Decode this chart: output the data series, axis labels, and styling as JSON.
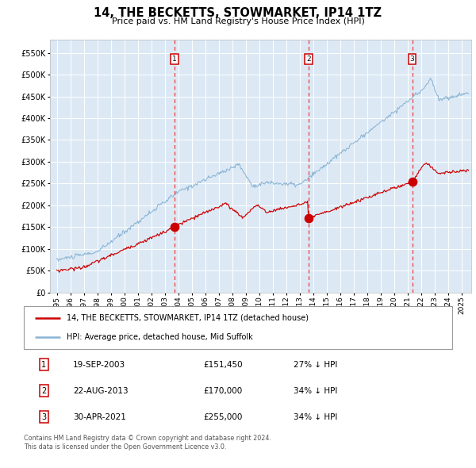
{
  "title": "14, THE BECKETTS, STOWMARKET, IP14 1TZ",
  "subtitle": "Price paid vs. HM Land Registry's House Price Index (HPI)",
  "legend_red": "14, THE BECKETTS, STOWMARKET, IP14 1TZ (detached house)",
  "legend_blue": "HPI: Average price, detached house, Mid Suffolk",
  "footnote1": "Contains HM Land Registry data © Crown copyright and database right 2024.",
  "footnote2": "This data is licensed under the Open Government Licence v3.0.",
  "transactions": [
    {
      "num": 1,
      "date": "19-SEP-2003",
      "price": 151450,
      "pct": "27% ↓ HPI"
    },
    {
      "num": 2,
      "date": "22-AUG-2013",
      "price": 170000,
      "pct": "34% ↓ HPI"
    },
    {
      "num": 3,
      "date": "30-APR-2021",
      "price": 255000,
      "pct": "34% ↓ HPI"
    }
  ],
  "transaction_dates_decimal": [
    2003.72,
    2013.64,
    2021.33
  ],
  "transaction_prices": [
    151450,
    170000,
    255000
  ],
  "bg_color": "#dce9f5",
  "grid_color": "#ffffff",
  "red_color": "#cc0000",
  "blue_color": "#8ab4d4",
  "vline_color": "#ee3333",
  "ylim": [
    0,
    580000
  ],
  "yticks": [
    0,
    50000,
    100000,
    150000,
    200000,
    250000,
    300000,
    350000,
    400000,
    450000,
    500000,
    550000
  ],
  "xlim_start": 1994.5,
  "xlim_end": 2025.7,
  "title_fontsize": 10.5,
  "subtitle_fontsize": 8,
  "tick_fontsize": 6.5,
  "ytick_fontsize": 7
}
